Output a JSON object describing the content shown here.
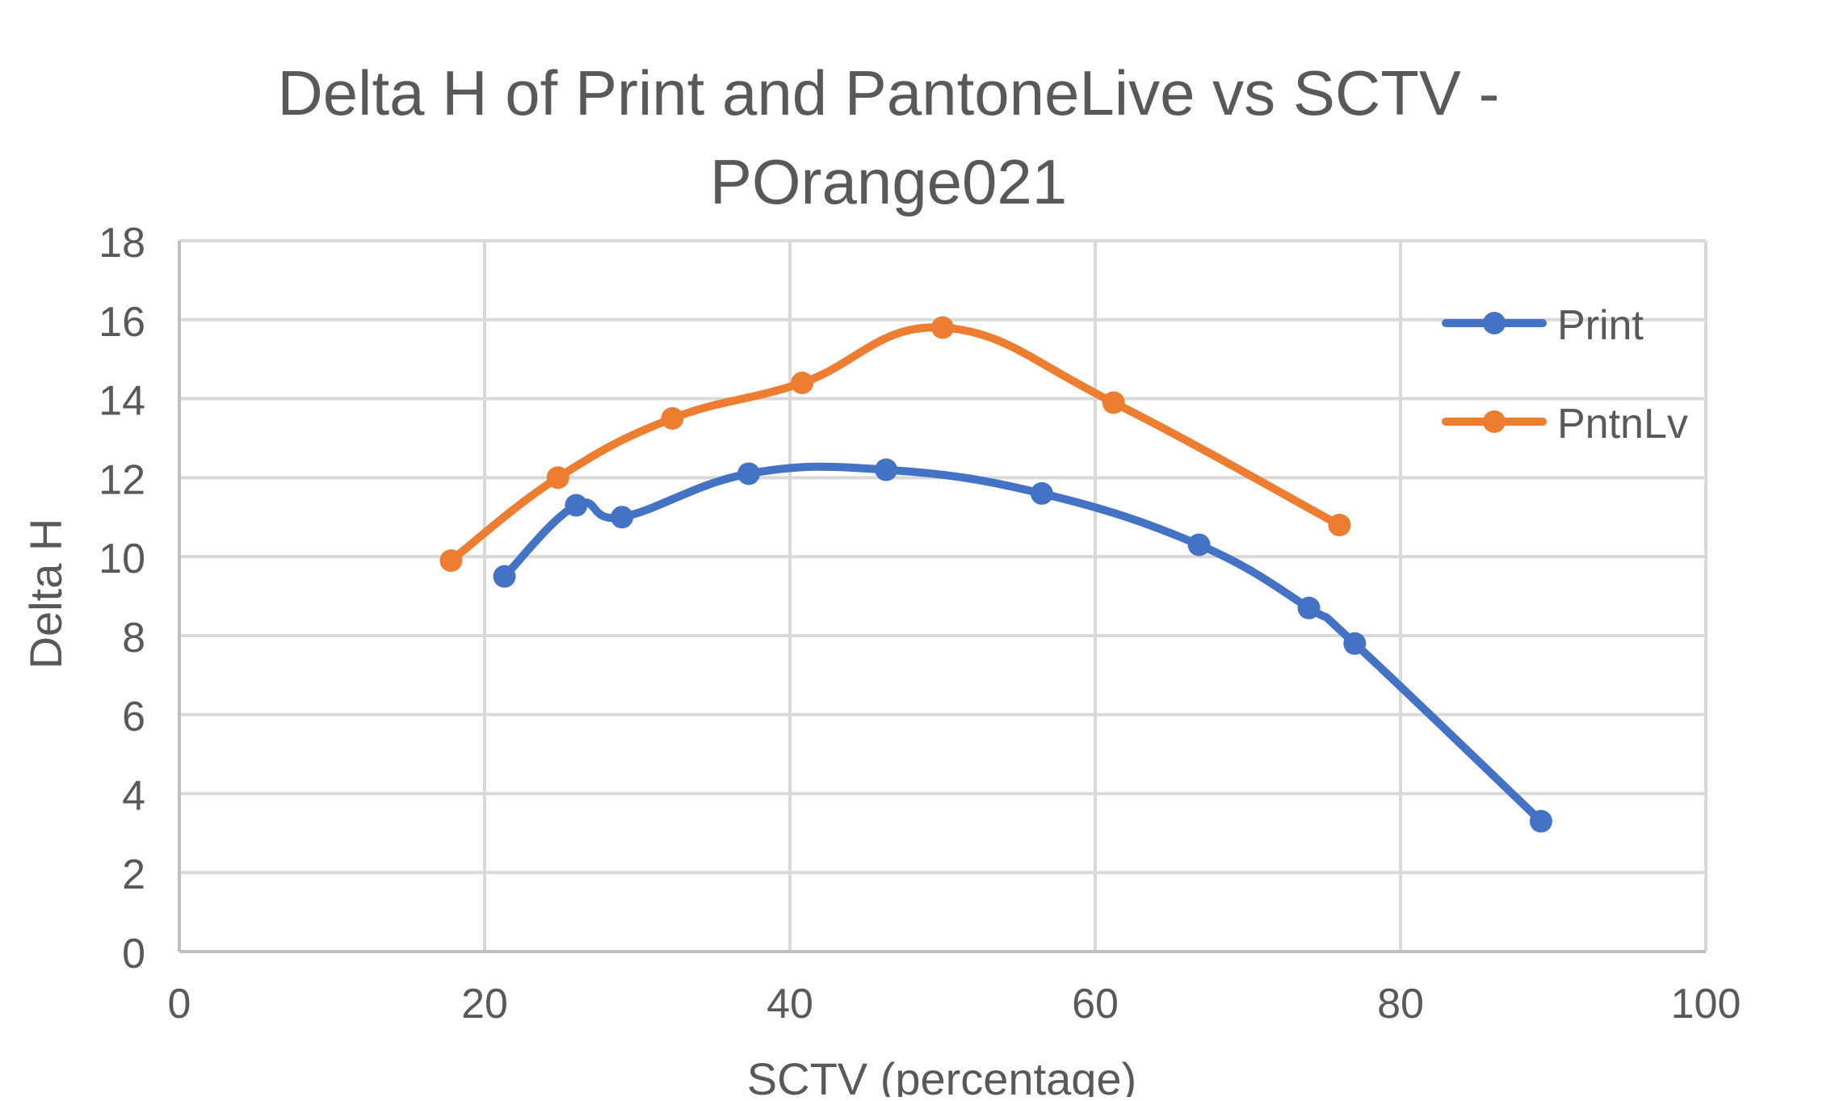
{
  "chart_data": {
    "type": "scatter",
    "title_line1": "Delta H of Print and PantoneLive vs SCTV -",
    "title_line2": "POrange021",
    "xlabel": "SCTV (percentage)",
    "ylabel": "Delta H",
    "xlim": [
      0,
      100
    ],
    "ylim": [
      0,
      18
    ],
    "xticks": [
      0,
      20,
      40,
      60,
      80,
      100
    ],
    "yticks": [
      0,
      2,
      4,
      6,
      8,
      10,
      12,
      14,
      16,
      18
    ],
    "grid": true,
    "smooth_lines": true,
    "markers": true,
    "legend_position": "right",
    "series": [
      {
        "name": "Print",
        "color": "#4472C4",
        "points": [
          [
            21.3,
            9.5
          ],
          [
            26.0,
            11.3
          ],
          [
            29.0,
            11.0
          ],
          [
            37.3,
            12.1
          ],
          [
            46.3,
            12.2
          ],
          [
            56.5,
            11.6
          ],
          [
            66.8,
            10.3
          ],
          [
            74.0,
            8.7
          ],
          [
            77.0,
            7.8
          ],
          [
            89.2,
            3.3
          ]
        ]
      },
      {
        "name": "PntnLv",
        "color": "#ED7D31",
        "points": [
          [
            17.8,
            9.9
          ],
          [
            24.8,
            12.0
          ],
          [
            32.3,
            13.5
          ],
          [
            40.8,
            14.4
          ],
          [
            50.0,
            15.8
          ],
          [
            61.2,
            13.9
          ],
          [
            76.0,
            10.8
          ]
        ]
      }
    ]
  }
}
